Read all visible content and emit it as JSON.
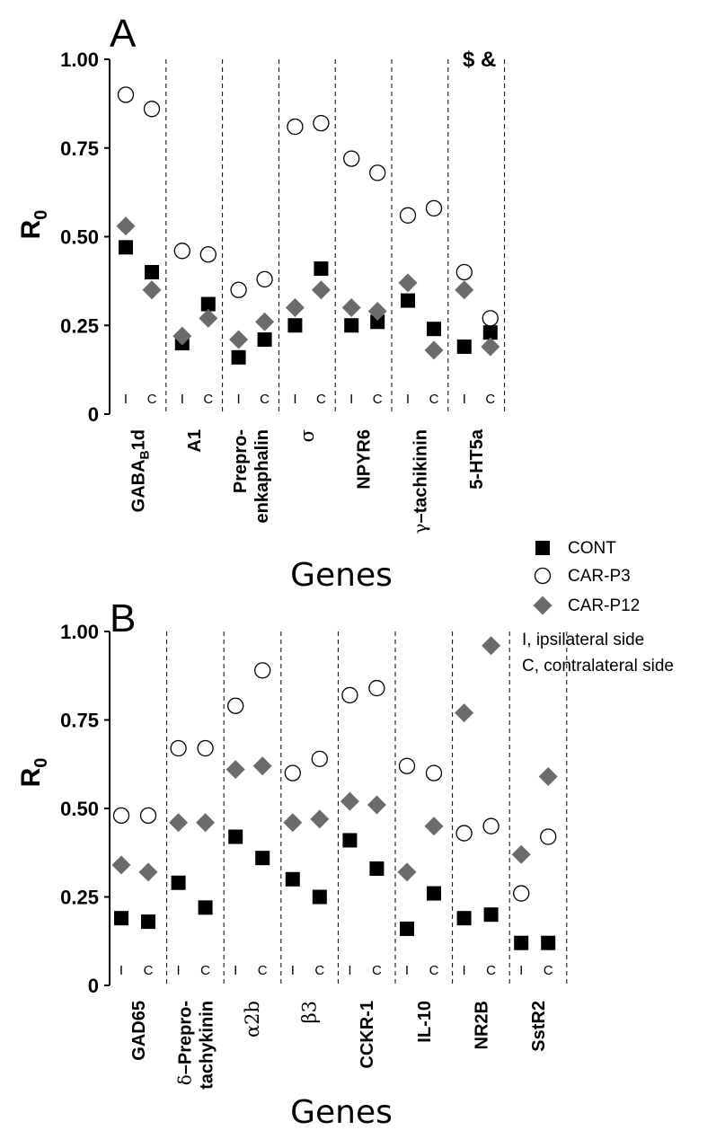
{
  "chart_data": [
    {
      "type": "scatter",
      "panel": "A",
      "xlabel": "Genes",
      "ylabel": "R0",
      "ylim": [
        0,
        1
      ],
      "yticks": [
        "0",
        "0.25",
        "0.50",
        "0.75",
        "1.00"
      ],
      "sides": [
        "I",
        "C"
      ],
      "annotation": "$ &",
      "categories": [
        {
          "label": "GABAB1d",
          "parts": [
            [
              "GABA",
              ""
            ],
            [
              "B",
              "sub"
            ],
            [
              "1d",
              ""
            ]
          ]
        },
        {
          "label": "A1"
        },
        {
          "label": "Prepro-\nenkaphalin"
        },
        {
          "label": "σ",
          "serif": true
        },
        {
          "label": "NPYR6"
        },
        {
          "label": "γ–tachikinin",
          "parts": [
            [
              "γ",
              "serif"
            ],
            [
              "–tachikinin",
              ""
            ]
          ]
        },
        {
          "label": "5-HT5a"
        }
      ],
      "series": [
        {
          "name": "CONT",
          "marker": "square",
          "values": [
            [
              0.47,
              0.4
            ],
            [
              0.2,
              0.31
            ],
            [
              0.16,
              0.21
            ],
            [
              0.25,
              0.41
            ],
            [
              0.25,
              0.26
            ],
            [
              0.32,
              0.24
            ],
            [
              0.19,
              0.23
            ]
          ]
        },
        {
          "name": "CAR-P3",
          "marker": "circle",
          "values": [
            [
              0.9,
              0.86
            ],
            [
              0.46,
              0.45
            ],
            [
              0.35,
              0.38
            ],
            [
              0.81,
              0.82
            ],
            [
              0.72,
              0.68
            ],
            [
              0.56,
              0.58
            ],
            [
              0.4,
              0.27
            ]
          ]
        },
        {
          "name": "CAR-P12",
          "marker": "diamond",
          "values": [
            [
              0.53,
              0.35
            ],
            [
              0.22,
              0.27
            ],
            [
              0.21,
              0.26
            ],
            [
              0.3,
              0.35
            ],
            [
              0.3,
              0.29
            ],
            [
              0.37,
              0.18
            ],
            [
              0.35,
              0.19
            ]
          ]
        }
      ]
    },
    {
      "type": "scatter",
      "panel": "B",
      "xlabel": "Genes",
      "ylabel": "R0",
      "ylim": [
        0,
        1
      ],
      "yticks": [
        "0",
        "0.25",
        "0.50",
        "0.75",
        "1.00"
      ],
      "sides": [
        "I",
        "C"
      ],
      "categories": [
        {
          "label": "GAD65"
        },
        {
          "label": "δ–Prepro-\ntachykinin",
          "parts": [
            [
              "δ",
              "serif"
            ],
            [
              "–Prepro-",
              ""
            ]
          ]
        },
        {
          "label": "α2b",
          "serif": true
        },
        {
          "label": "β3",
          "serif": true
        },
        {
          "label": "CCKR-1"
        },
        {
          "label": "IL-10"
        },
        {
          "label": "NR2B"
        },
        {
          "label": "SstR2"
        }
      ],
      "series": [
        {
          "name": "CONT",
          "marker": "square",
          "values": [
            [
              0.19,
              0.18
            ],
            [
              0.29,
              0.22
            ],
            [
              0.42,
              0.36
            ],
            [
              0.3,
              0.25
            ],
            [
              0.41,
              0.33
            ],
            [
              0.16,
              0.26
            ],
            [
              0.19,
              0.2
            ],
            [
              0.12,
              0.12
            ]
          ]
        },
        {
          "name": "CAR-P3",
          "marker": "circle",
          "values": [
            [
              0.48,
              0.48
            ],
            [
              0.67,
              0.67
            ],
            [
              0.79,
              0.89
            ],
            [
              0.6,
              0.64
            ],
            [
              0.82,
              0.84
            ],
            [
              0.62,
              0.6
            ],
            [
              0.43,
              0.45
            ],
            [
              0.26,
              0.42
            ]
          ]
        },
        {
          "name": "CAR-P12",
          "marker": "diamond",
          "values": [
            [
              0.34,
              0.32
            ],
            [
              0.46,
              0.46
            ],
            [
              0.61,
              0.62
            ],
            [
              0.46,
              0.47
            ],
            [
              0.52,
              0.51
            ],
            [
              0.32,
              0.45
            ],
            [
              0.77,
              0.96
            ],
            [
              0.37,
              0.59
            ]
          ]
        }
      ]
    }
  ],
  "legend": {
    "items": [
      {
        "label": "CONT",
        "marker": "square"
      },
      {
        "label": "CAR-P3",
        "marker": "circle"
      },
      {
        "label": "CAR-P12",
        "marker": "diamond"
      }
    ],
    "notes": [
      "I, ipsilateral side",
      "C, contralateral side"
    ]
  },
  "colors": {
    "cont": "#000000",
    "car_p3_fill": "#ffffff",
    "car_p3_stroke": "#000000",
    "car_p12": "#6b6b6b"
  }
}
